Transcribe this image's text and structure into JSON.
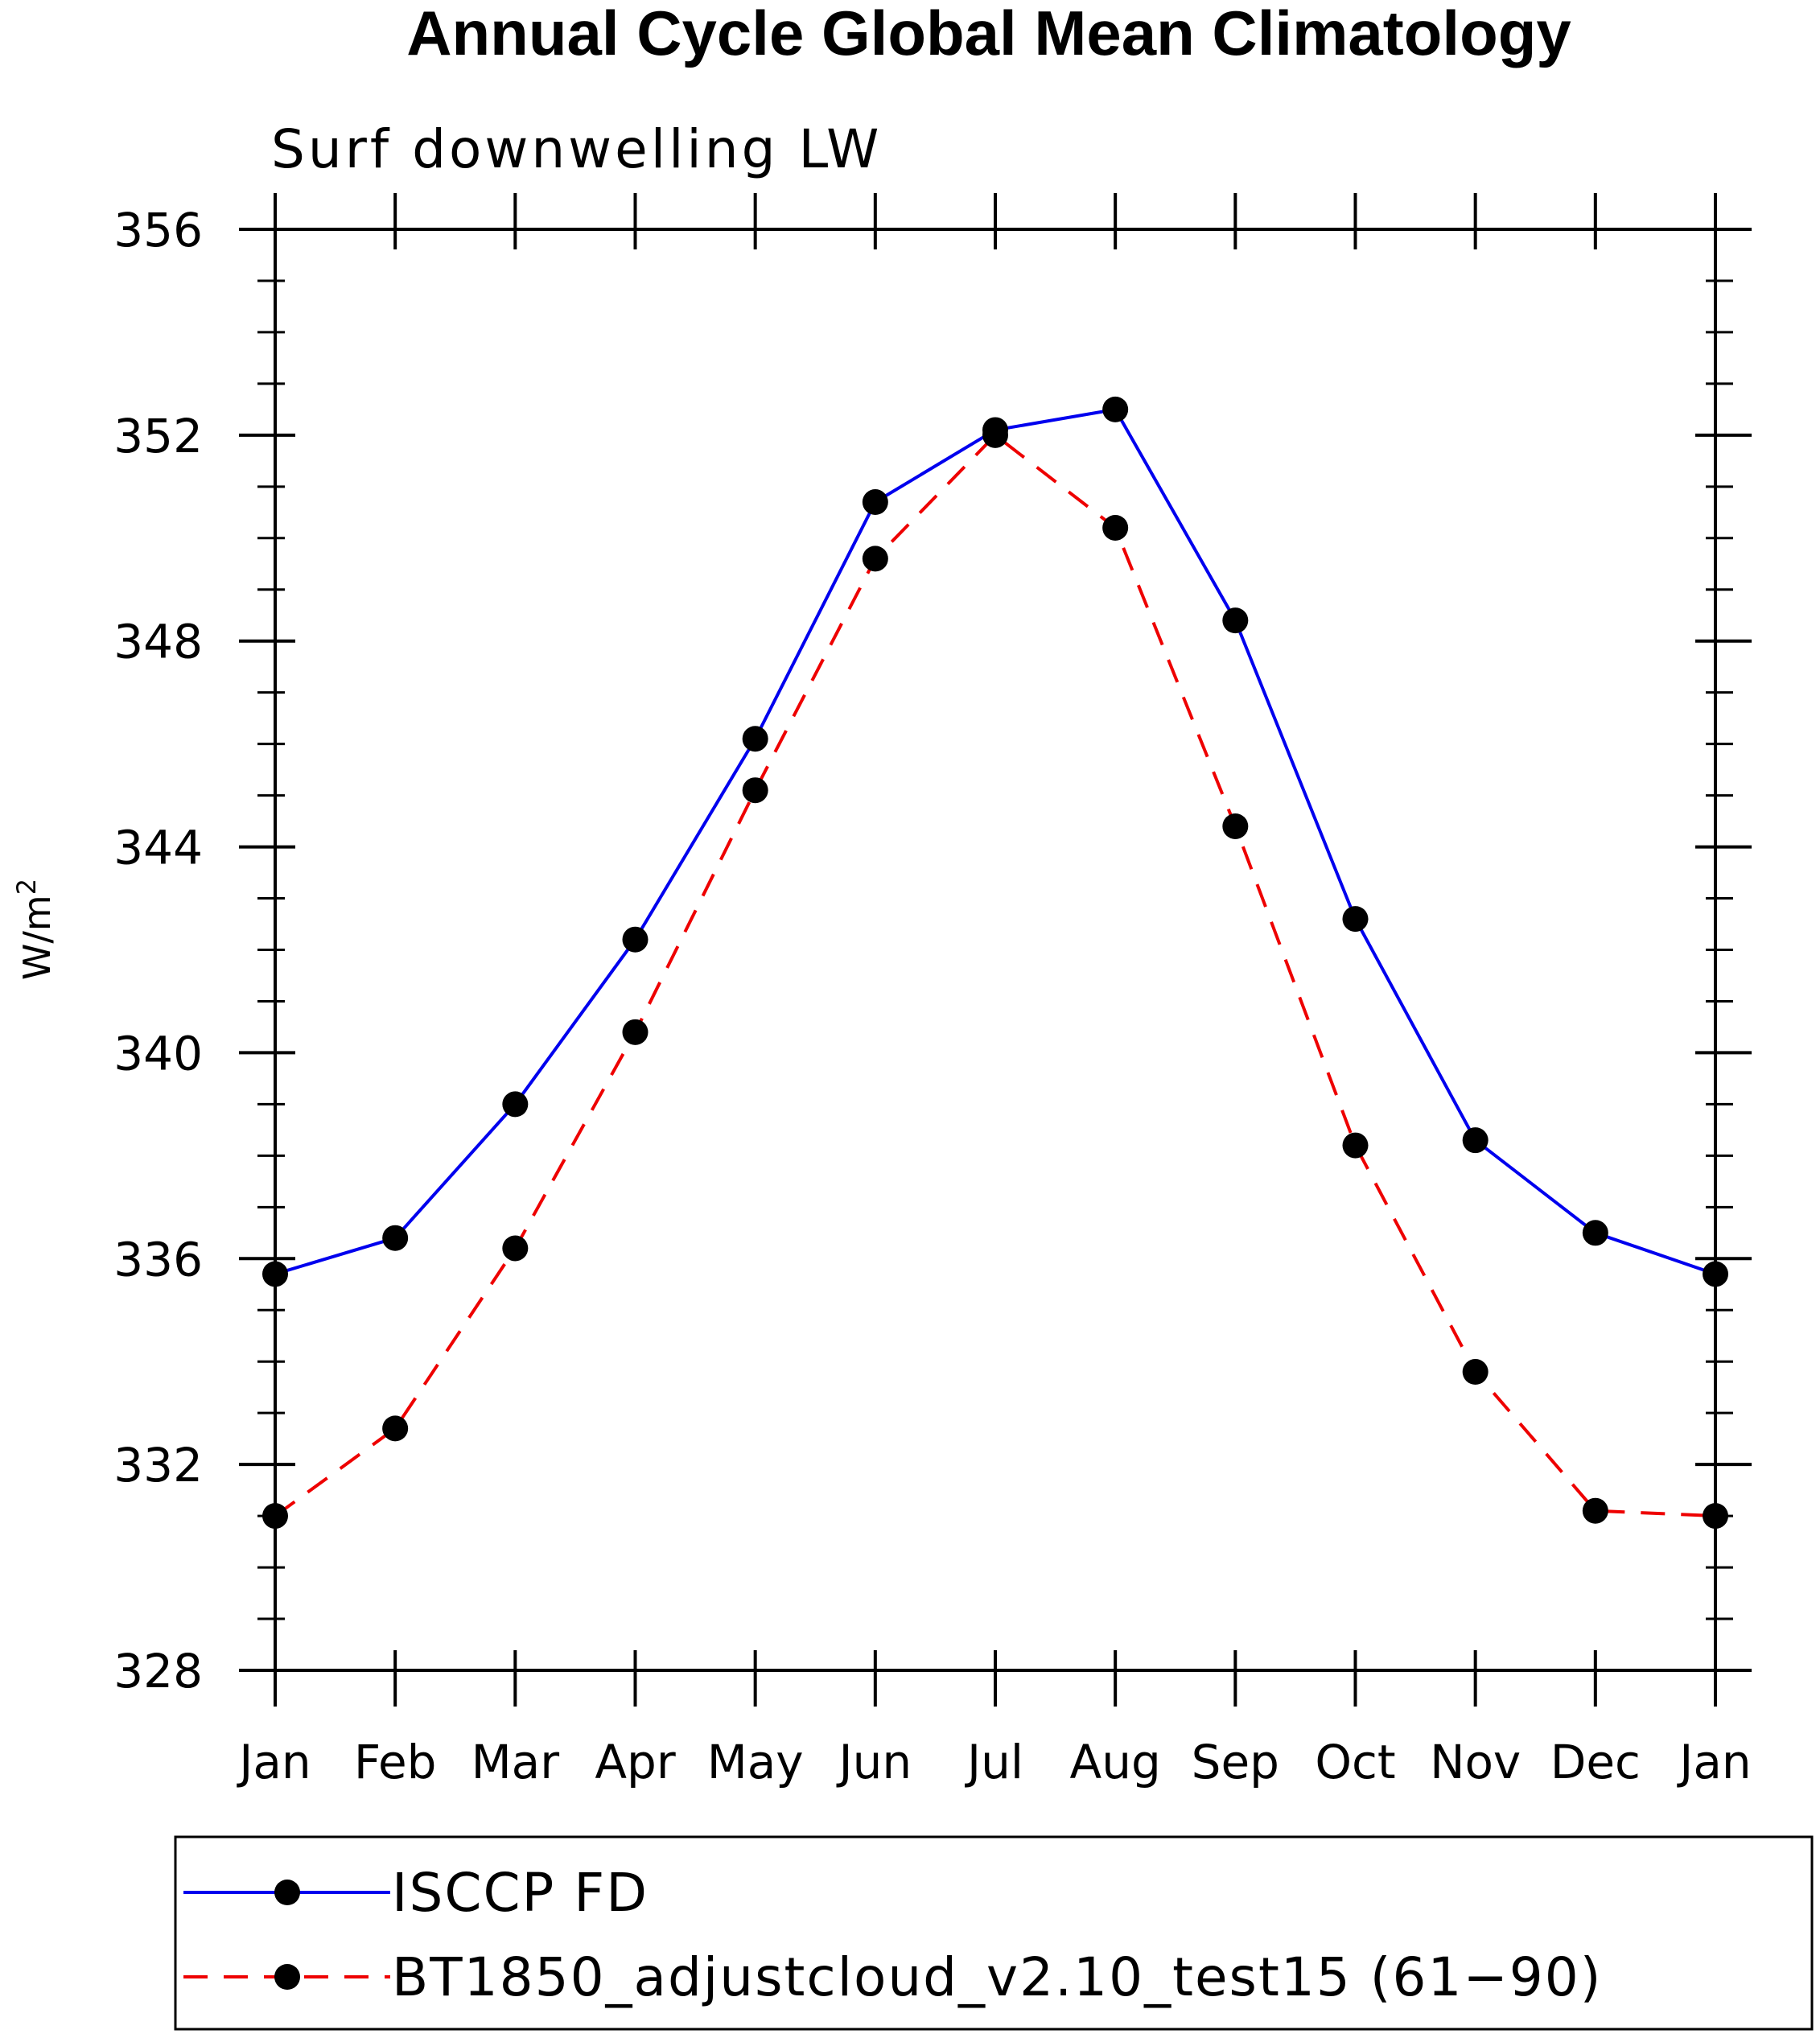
{
  "chart_data": {
    "type": "line",
    "title": "Annual Cycle Global Mean Climatology",
    "subtitle": "Surf downwelling LW",
    "ylabel": "W/m",
    "ylabel_superscript": "2",
    "categories": [
      "Jan",
      "Feb",
      "Mar",
      "Apr",
      "May",
      "Jun",
      "Jul",
      "Aug",
      "Sep",
      "Oct",
      "Nov",
      "Dec",
      "Jan"
    ],
    "ylim": [
      328,
      356
    ],
    "yticks": [
      328,
      332,
      336,
      340,
      344,
      348,
      352,
      356
    ],
    "ytick_labels": [
      "328",
      "332",
      "336",
      "340",
      "344",
      "348",
      "352",
      "356"
    ],
    "y_minor_step": 1,
    "series": [
      {
        "name": "ISCCP FD",
        "color": "#0000ee",
        "style": "solid",
        "marker": "filled-circle",
        "values": [
          335.7,
          336.4,
          339.0,
          342.2,
          346.1,
          350.7,
          352.1,
          352.5,
          348.4,
          342.6,
          338.3,
          336.5,
          335.7
        ]
      },
      {
        "name": "BT1850_adjustcloud_v2.10_test15 (61−90)",
        "color": "#ee0000",
        "style": "dashed",
        "marker": "filled-circle",
        "values": [
          331.0,
          332.7,
          336.2,
          340.4,
          345.1,
          349.6,
          352.0,
          350.2,
          344.4,
          338.2,
          333.8,
          331.1,
          331.0
        ]
      }
    ],
    "legend_position": "bottom",
    "grid": false
  }
}
